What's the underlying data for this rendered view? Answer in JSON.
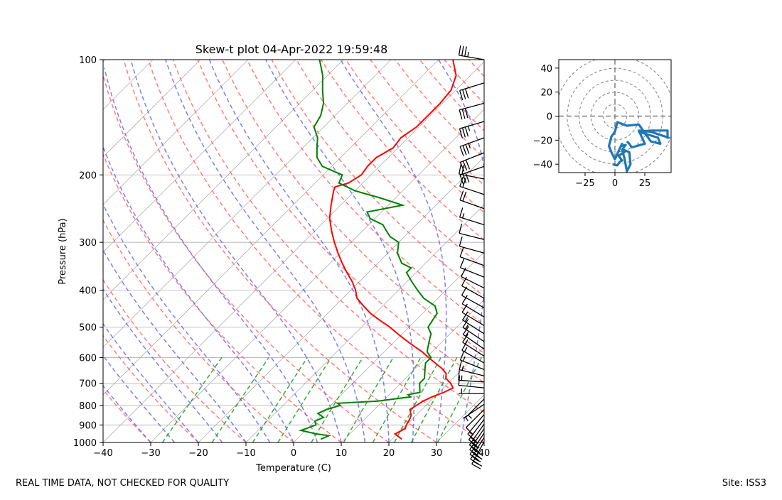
{
  "footer": {
    "left_note": "REAL TIME DATA, NOT CHECKED FOR QUALITY",
    "site": "Site: ISS3"
  },
  "colors": {
    "temperature": "#ff0000",
    "dewpoint": "#008000",
    "dry_adiabat": "#ff6666",
    "moist_adiabat": "#6666ee",
    "mixing_ratio": "#22a022",
    "isotherm_grid": "#b0b0b0",
    "hodograph_trace": "#1f77b4",
    "hodograph_rings": "#808080",
    "barbs": "#000000"
  },
  "chart_data": [
    {
      "type": "line",
      "kind": "skew-t",
      "title": "Skew-t plot 04-Apr-2022 19:59:48",
      "xlabel": "Temperature (C)",
      "ylabel": "Pressure (hPa)",
      "xlim": [
        -40,
        40
      ],
      "ylim": [
        1000,
        100
      ],
      "y_scale": "log",
      "x_ticks": [
        -40,
        -30,
        -20,
        -10,
        0,
        10,
        20,
        30,
        40
      ],
      "y_ticks": [
        1000,
        900,
        800,
        700,
        600,
        500,
        400,
        300,
        200,
        100
      ],
      "grid": true,
      "series": [
        {
          "name": "Temperature",
          "pressure": [
            980,
            950,
            920,
            900,
            870,
            850,
            820,
            800,
            780,
            760,
            740,
            720,
            700,
            680,
            660,
            640,
            620,
            600,
            580,
            560,
            540,
            520,
            500,
            480,
            460,
            440,
            420,
            400,
            380,
            360,
            340,
            320,
            300,
            280,
            260,
            240,
            220,
            215,
            210,
            200,
            190,
            180,
            170,
            160,
            150,
            140,
            130,
            120,
            110,
            100
          ],
          "values": [
            22,
            19.5,
            20.5,
            20,
            19.5,
            19,
            17.5,
            18,
            18.5,
            19.5,
            21,
            22,
            20.5,
            18.5,
            17.5,
            15.5,
            13,
            10.5,
            8,
            5,
            2,
            -1,
            -4,
            -7.5,
            -11,
            -14,
            -17,
            -19,
            -21.5,
            -24.5,
            -27.5,
            -30.5,
            -33.5,
            -36.5,
            -39.5,
            -42,
            -44.5,
            -45,
            -43,
            -42,
            -42.5,
            -42.5,
            -41,
            -41.5,
            -40.5,
            -40.5,
            -40.5,
            -41,
            -43,
            -47
          ]
        },
        {
          "name": "Dewpoint",
          "pressure": [
            980,
            960,
            950,
            930,
            900,
            880,
            860,
            840,
            820,
            800,
            790,
            780,
            760,
            750,
            740,
            720,
            700,
            680,
            660,
            640,
            620,
            600,
            580,
            560,
            540,
            520,
            500,
            480,
            460,
            440,
            420,
            400,
            380,
            360,
            350,
            340,
            320,
            300,
            290,
            280,
            270,
            260,
            250,
            240,
            230,
            220,
            210,
            200,
            190,
            180,
            170,
            160,
            150,
            140,
            130,
            120,
            110,
            100
          ],
          "values": [
            5,
            6,
            3,
            -1,
            1,
            0,
            1,
            -1,
            0,
            2,
            1,
            9,
            15,
            14,
            16,
            15,
            14,
            14,
            13,
            12,
            11,
            11,
            9,
            8,
            7,
            6,
            4,
            3.5,
            3,
            1,
            -3,
            -6,
            -9,
            -12,
            -12,
            -15,
            -18,
            -20,
            -23,
            -25,
            -27,
            -31,
            -33,
            -27,
            -33,
            -40,
            -45,
            -46,
            -52,
            -55,
            -57,
            -59,
            -62,
            -63,
            -65,
            -68,
            -71,
            -75
          ]
        }
      ],
      "wind_barbs": {
        "description": "wind barbs plotted along right edge of skew-t",
        "pressure": [
          995,
          970,
          945,
          920,
          895,
          870,
          845,
          820,
          795,
          770,
          745,
          720,
          695,
          670,
          645,
          620,
          595,
          570,
          545,
          520,
          495,
          470,
          445,
          420,
          395,
          370,
          345,
          320,
          295,
          270,
          245,
          225,
          205,
          190,
          175,
          160,
          145,
          130,
          115,
          100
        ],
        "u_kt": [
          12,
          15,
          16,
          15,
          14,
          12,
          10,
          6,
          3,
          2,
          4,
          10,
          15,
          16,
          15,
          14,
          14,
          13,
          12,
          11,
          10,
          10,
          9,
          9,
          10,
          10,
          11,
          11,
          12,
          16,
          17,
          18,
          20,
          28,
          30,
          33,
          34,
          30,
          29,
          35
        ],
        "v_kt": [
          22,
          24,
          24,
          22,
          20,
          16,
          12,
          6,
          2,
          2,
          0,
          -1,
          -1,
          -4,
          -6,
          -8,
          -9,
          -9,
          -8,
          -7,
          -6,
          -6,
          -5,
          -5,
          -5,
          -4,
          -4,
          -3,
          -3,
          -5,
          -6,
          -6,
          -4,
          10,
          12,
          12,
          10,
          8,
          9,
          -6
        ]
      },
      "reference_lines": {
        "dry_adiabats": "dashed red curves",
        "moist_adiabats": "dashed blue curves",
        "mixing_ratio_lines": "dashed green lines (1000-600 hPa)",
        "isotherms": "skewed grey grid lines"
      }
    },
    {
      "type": "line",
      "kind": "hodograph",
      "xlim": [
        -47,
        47
      ],
      "ylim": [
        -47,
        47
      ],
      "x_ticks": [
        -25,
        0,
        25
      ],
      "y_ticks": [
        -40,
        -20,
        0,
        20,
        40
      ],
      "ring_radii": [
        10,
        20,
        30,
        40,
        50
      ],
      "u": [
        -2,
        2,
        4,
        6,
        3,
        8,
        7,
        12,
        13,
        10,
        8,
        6,
        9,
        5,
        6,
        4,
        0,
        -3,
        -5,
        -3,
        0,
        2,
        10,
        20,
        30,
        38,
        36,
        20,
        30,
        44,
        44,
        45,
        30,
        20,
        25,
        14,
        12,
        10
      ],
      "v": [
        -40,
        -41,
        -38,
        -37,
        -33,
        -30,
        -28,
        -30,
        -40,
        -46,
        -35,
        -28,
        -24,
        -25,
        -23,
        -27,
        -36,
        -30,
        -25,
        -17,
        -13,
        -5,
        -8,
        -7,
        -21,
        -23,
        -18,
        -13,
        -12,
        -12,
        -18,
        -18,
        -13,
        -12,
        -23,
        -26,
        -23,
        -21
      ]
    }
  ]
}
